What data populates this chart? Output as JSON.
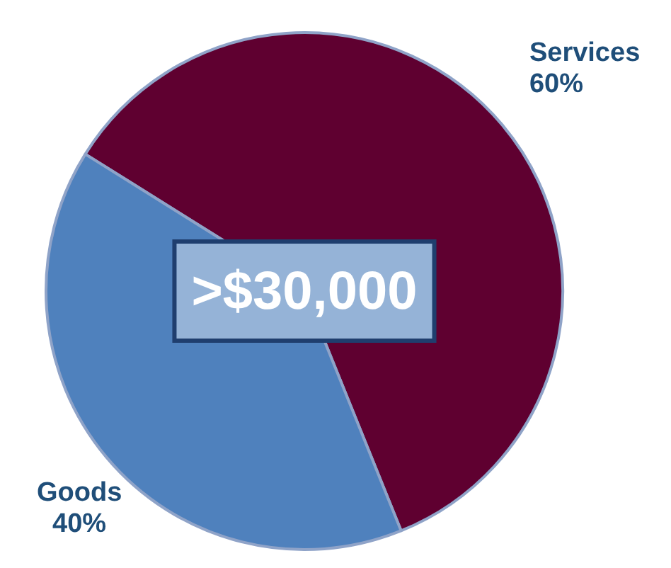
{
  "chart_data": {
    "type": "pie",
    "categories": [
      "Services",
      "Goods"
    ],
    "values": [
      60,
      40
    ],
    "value_labels": [
      "60%",
      "40%"
    ],
    "colors": [
      "#5f0030",
      "#4f81bd"
    ],
    "annotations": [
      ">$30,000"
    ],
    "legend": false
  }
}
